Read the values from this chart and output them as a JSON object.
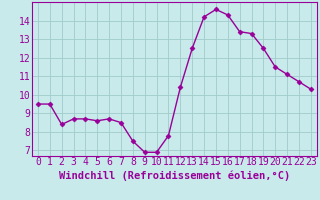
{
  "hours": [
    0,
    1,
    2,
    3,
    4,
    5,
    6,
    7,
    8,
    9,
    10,
    11,
    12,
    13,
    14,
    15,
    16,
    17,
    18,
    19,
    20,
    21,
    22,
    23
  ],
  "values": [
    9.5,
    9.5,
    8.4,
    8.7,
    8.7,
    8.6,
    8.7,
    8.5,
    7.5,
    6.9,
    6.9,
    7.8,
    10.4,
    12.5,
    14.2,
    14.6,
    14.3,
    13.4,
    13.3,
    12.5,
    11.5,
    11.1,
    10.7,
    10.3
  ],
  "line_color": "#990099",
  "marker_color": "#990099",
  "bg_color": "#c8eaea",
  "grid_color": "#a0cccc",
  "xlabel": "Windchill (Refroidissement éolien,°C)",
  "ylabel_ticks": [
    7,
    8,
    9,
    10,
    11,
    12,
    13,
    14
  ],
  "ylim": [
    6.7,
    15.0
  ],
  "xlim": [
    -0.5,
    23.5
  ],
  "tick_color": "#990099",
  "label_color": "#990099",
  "xlabel_fontsize": 7.5,
  "tick_fontsize": 7,
  "linewidth": 1.0,
  "markersize": 2.5
}
